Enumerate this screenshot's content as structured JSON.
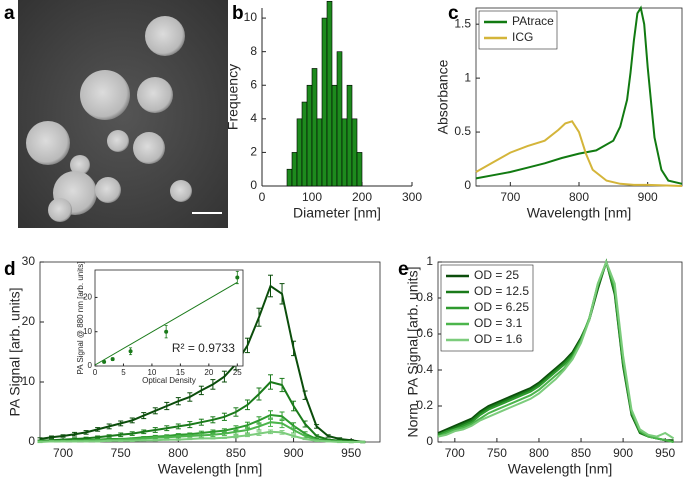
{
  "image_panel": {
    "label": "a"
  },
  "chart_data": [
    {
      "type": "histogram",
      "label": "b",
      "xlabel": "Diameter [nm]",
      "ylabel": "Frequency",
      "color": "#1d8a1d",
      "box": false,
      "bins": [
        50,
        60,
        70,
        80,
        90,
        100,
        110,
        120,
        130,
        140,
        150,
        160,
        170,
        180,
        190,
        200
      ],
      "values": [
        1,
        2,
        4,
        5,
        6,
        7,
        4,
        10,
        11,
        6,
        8,
        4,
        6,
        4,
        2
      ],
      "xlim": [
        0,
        300
      ],
      "xticks": [
        0,
        100,
        200,
        300
      ],
      "ylim": [
        0,
        10.6
      ],
      "yticks": [
        0,
        2,
        4,
        6,
        8,
        10
      ]
    },
    {
      "type": "line",
      "label": "c",
      "xlabel": "Wavelength [nm]",
      "ylabel": "Absorbance",
      "box": true,
      "legend": "top-left",
      "xlim": [
        650,
        950
      ],
      "xticks": [
        700,
        800,
        900
      ],
      "ylim": [
        0,
        1.65
      ],
      "yticks": [
        0,
        0.5,
        1,
        1.5
      ],
      "series": [
        {
          "name": "PAtrace",
          "color": "#117a11",
          "x": [
            650,
            675,
            700,
            725,
            750,
            775,
            800,
            825,
            850,
            860,
            870,
            875,
            880,
            885,
            890,
            895,
            900,
            910,
            920,
            930,
            950
          ],
          "values": [
            0.07,
            0.1,
            0.13,
            0.17,
            0.21,
            0.26,
            0.3,
            0.33,
            0.42,
            0.55,
            0.8,
            1.05,
            1.35,
            1.6,
            1.65,
            1.5,
            1.1,
            0.45,
            0.15,
            0.05,
            0.02
          ]
        },
        {
          "name": "ICG",
          "color": "#d4b53a",
          "x": [
            650,
            675,
            700,
            725,
            750,
            770,
            780,
            790,
            800,
            810,
            820,
            840,
            860,
            880,
            900,
            950
          ],
          "values": [
            0.13,
            0.22,
            0.31,
            0.37,
            0.42,
            0.52,
            0.58,
            0.6,
            0.5,
            0.3,
            0.15,
            0.05,
            0.02,
            0.01,
            0.01,
            0.0
          ]
        }
      ]
    },
    {
      "type": "line",
      "label": "d",
      "xlabel": "Wavelength [nm]",
      "ylabel": "PA Signal [arb. units]",
      "box": true,
      "xlim": [
        680,
        975
      ],
      "xticks": [
        700,
        750,
        800,
        850,
        900,
        950
      ],
      "ylim": [
        0,
        30
      ],
      "yticks": [
        0,
        10,
        20,
        30
      ],
      "x": [
        680,
        690,
        700,
        710,
        720,
        730,
        740,
        750,
        760,
        770,
        780,
        790,
        800,
        810,
        820,
        830,
        840,
        850,
        860,
        870,
        880,
        890,
        900,
        910,
        920,
        930,
        940,
        950,
        960
      ],
      "series": [
        {
          "color": "#0b4d0b",
          "values": [
            0.5,
            0.8,
            1.0,
            1.3,
            1.6,
            2.1,
            2.6,
            3.1,
            3.6,
            4.4,
            5.2,
            6.0,
            6.8,
            7.5,
            8.6,
            9.6,
            10.9,
            13.0,
            16.1,
            20.8,
            26.0,
            24.7,
            15.6,
            7.8,
            2.6,
            1.0,
            0.5,
            0.3,
            0.0
          ],
          "errors": [
            0.2,
            0.2,
            0.2,
            0.3,
            0.3,
            0.3,
            0.4,
            0.4,
            0.4,
            0.5,
            0.5,
            0.6,
            0.6,
            0.7,
            0.7,
            0.8,
            0.9,
            1.0,
            1.2,
            1.5,
            1.8,
            1.7,
            1.2,
            0.7,
            0.3,
            0.2,
            0.2,
            0.1,
            0.1
          ]
        },
        {
          "color": "#1a7a1a",
          "values": [
            0.2,
            0.3,
            0.4,
            0.5,
            0.6,
            0.8,
            1.0,
            1.2,
            1.4,
            1.7,
            2.0,
            2.3,
            2.6,
            2.9,
            3.3,
            3.7,
            4.2,
            5.0,
            6.2,
            8.0,
            10.0,
            9.5,
            6.0,
            3.0,
            1.0,
            0.4,
            0.2,
            0.1,
            0.0
          ],
          "errors": [
            0.1,
            0.1,
            0.1,
            0.2,
            0.2,
            0.2,
            0.2,
            0.3,
            0.3,
            0.3,
            0.4,
            0.4,
            0.4,
            0.5,
            0.5,
            0.5,
            0.6,
            0.7,
            0.8,
            1.0,
            1.2,
            1.1,
            0.8,
            0.5,
            0.2,
            0.1,
            0.1,
            0.1,
            0.1
          ]
        },
        {
          "color": "#2e9a2e",
          "values": [
            0.1,
            0.1,
            0.2,
            0.2,
            0.3,
            0.4,
            0.5,
            0.5,
            0.6,
            0.8,
            0.9,
            1.0,
            1.2,
            1.3,
            1.5,
            1.7,
            1.9,
            2.3,
            2.8,
            3.6,
            4.5,
            4.3,
            2.7,
            1.4,
            0.5,
            0.2,
            0.1,
            0.0,
            0.0
          ],
          "errors": [
            0.1,
            0.1,
            0.1,
            0.1,
            0.1,
            0.1,
            0.1,
            0.1,
            0.1,
            0.1,
            0.2,
            0.2,
            0.2,
            0.2,
            0.3,
            0.3,
            0.3,
            0.4,
            0.5,
            0.6,
            0.7,
            0.7,
            0.5,
            0.3,
            0.1,
            0.1,
            0.1,
            0.1,
            0.1
          ]
        },
        {
          "color": "#4cb54c",
          "values": [
            0.1,
            0.1,
            0.1,
            0.2,
            0.2,
            0.3,
            0.3,
            0.4,
            0.5,
            0.6,
            0.7,
            0.8,
            0.9,
            1.0,
            1.1,
            1.2,
            1.4,
            1.7,
            2.0,
            2.6,
            3.3,
            3.1,
            2.0,
            1.0,
            0.3,
            0.1,
            0.1,
            0.0,
            0.0
          ],
          "errors": [
            0.1,
            0.1,
            0.1,
            0.1,
            0.1,
            0.1,
            0.1,
            0.1,
            0.1,
            0.1,
            0.2,
            0.2,
            0.2,
            0.2,
            0.3,
            0.3,
            0.3,
            0.4,
            0.5,
            0.6,
            0.7,
            0.7,
            0.5,
            0.3,
            0.1,
            0.1,
            0.1,
            0.1,
            0.1
          ]
        },
        {
          "color": "#7ccc7c",
          "values": [
            0.0,
            0.1,
            0.1,
            0.1,
            0.1,
            0.1,
            0.2,
            0.2,
            0.2,
            0.3,
            0.3,
            0.4,
            0.4,
            0.5,
            0.6,
            0.6,
            0.7,
            0.9,
            1.1,
            1.4,
            1.7,
            1.6,
            1.0,
            0.5,
            0.2,
            0.1,
            0.0,
            0.0,
            0.0
          ],
          "errors": [
            0.1,
            0.1,
            0.1,
            0.1,
            0.1,
            0.1,
            0.1,
            0.1,
            0.1,
            0.1,
            0.1,
            0.1,
            0.1,
            0.1,
            0.1,
            0.1,
            0.1,
            0.2,
            0.2,
            0.3,
            0.3,
            0.3,
            0.2,
            0.1,
            0.1,
            0.1,
            0.1,
            0.1,
            0.1
          ]
        }
      ],
      "inset": {
        "type": "scatter",
        "xlabel": "Optical Density",
        "ylabel": "PA Signal @ 880 nm [arb. units]",
        "annotation": "R² = 0.9733",
        "color": "#1a7a1a",
        "box": true,
        "xlim": [
          0,
          26
        ],
        "xticks": [
          0,
          5,
          10,
          15,
          20,
          25
        ],
        "ylim": [
          0,
          28
        ],
        "yticks": [
          0,
          10,
          20
        ],
        "x": [
          1.6,
          3.1,
          6.25,
          12.5,
          25
        ],
        "values": [
          1.2,
          2.0,
          4.3,
          10.0,
          25.8
        ],
        "errors": [
          0.3,
          0.4,
          1.0,
          1.8,
          1.8
        ],
        "fit": {
          "x": [
            0,
            25
          ],
          "values": [
            0.3,
            24.4
          ]
        }
      }
    },
    {
      "type": "line",
      "label": "e",
      "xlabel": "Wavelength [nm]",
      "ylabel": "Norm. PA Signal [arb. units]",
      "box": true,
      "legend": "top-left",
      "xlim": [
        680,
        970
      ],
      "xticks": [
        700,
        750,
        800,
        850,
        900,
        950
      ],
      "ylim": [
        0,
        1
      ],
      "yticks": [
        0,
        0.2,
        0.4,
        0.6,
        0.8,
        1
      ],
      "x": [
        680,
        690,
        700,
        710,
        720,
        730,
        740,
        750,
        760,
        770,
        780,
        790,
        800,
        810,
        820,
        830,
        840,
        850,
        860,
        870,
        880,
        890,
        900,
        910,
        920,
        930,
        940,
        950,
        960
      ],
      "series": [
        {
          "name": "OD = 25",
          "color": "#0b4d0b",
          "values": [
            0.05,
            0.07,
            0.09,
            0.11,
            0.13,
            0.17,
            0.2,
            0.22,
            0.24,
            0.26,
            0.28,
            0.3,
            0.33,
            0.37,
            0.41,
            0.45,
            0.5,
            0.58,
            0.68,
            0.85,
            1.0,
            0.82,
            0.42,
            0.15,
            0.05,
            0.03,
            0.02,
            0.01,
            0.01
          ]
        },
        {
          "name": "OD = 12.5",
          "color": "#1a7a1a",
          "values": [
            0.04,
            0.06,
            0.08,
            0.1,
            0.12,
            0.16,
            0.19,
            0.21,
            0.23,
            0.25,
            0.27,
            0.29,
            0.32,
            0.36,
            0.4,
            0.44,
            0.49,
            0.57,
            0.68,
            0.86,
            1.0,
            0.83,
            0.43,
            0.16,
            0.05,
            0.03,
            0.02,
            0.01,
            0.0
          ]
        },
        {
          "name": "OD = 6.25",
          "color": "#2e9a2e",
          "values": [
            0.04,
            0.06,
            0.07,
            0.09,
            0.11,
            0.15,
            0.18,
            0.2,
            0.22,
            0.24,
            0.26,
            0.28,
            0.31,
            0.35,
            0.39,
            0.43,
            0.48,
            0.57,
            0.69,
            0.87,
            1.0,
            0.84,
            0.44,
            0.16,
            0.06,
            0.03,
            0.02,
            0.01,
            0.0
          ]
        },
        {
          "name": "OD = 3.1",
          "color": "#4cb54c",
          "values": [
            0.03,
            0.05,
            0.07,
            0.08,
            0.1,
            0.13,
            0.16,
            0.18,
            0.2,
            0.22,
            0.24,
            0.26,
            0.29,
            0.33,
            0.37,
            0.41,
            0.47,
            0.56,
            0.69,
            0.88,
            1.0,
            0.86,
            0.46,
            0.17,
            0.06,
            0.03,
            0.02,
            0.01,
            0.0
          ]
        },
        {
          "name": "OD = 1.6",
          "color": "#7ccc7c",
          "values": [
            0.03,
            0.04,
            0.06,
            0.07,
            0.09,
            0.12,
            0.14,
            0.16,
            0.18,
            0.2,
            0.22,
            0.24,
            0.27,
            0.31,
            0.35,
            0.4,
            0.46,
            0.55,
            0.68,
            0.88,
            1.0,
            0.88,
            0.48,
            0.18,
            0.07,
            0.04,
            0.03,
            0.05,
            0.02
          ]
        }
      ]
    }
  ]
}
